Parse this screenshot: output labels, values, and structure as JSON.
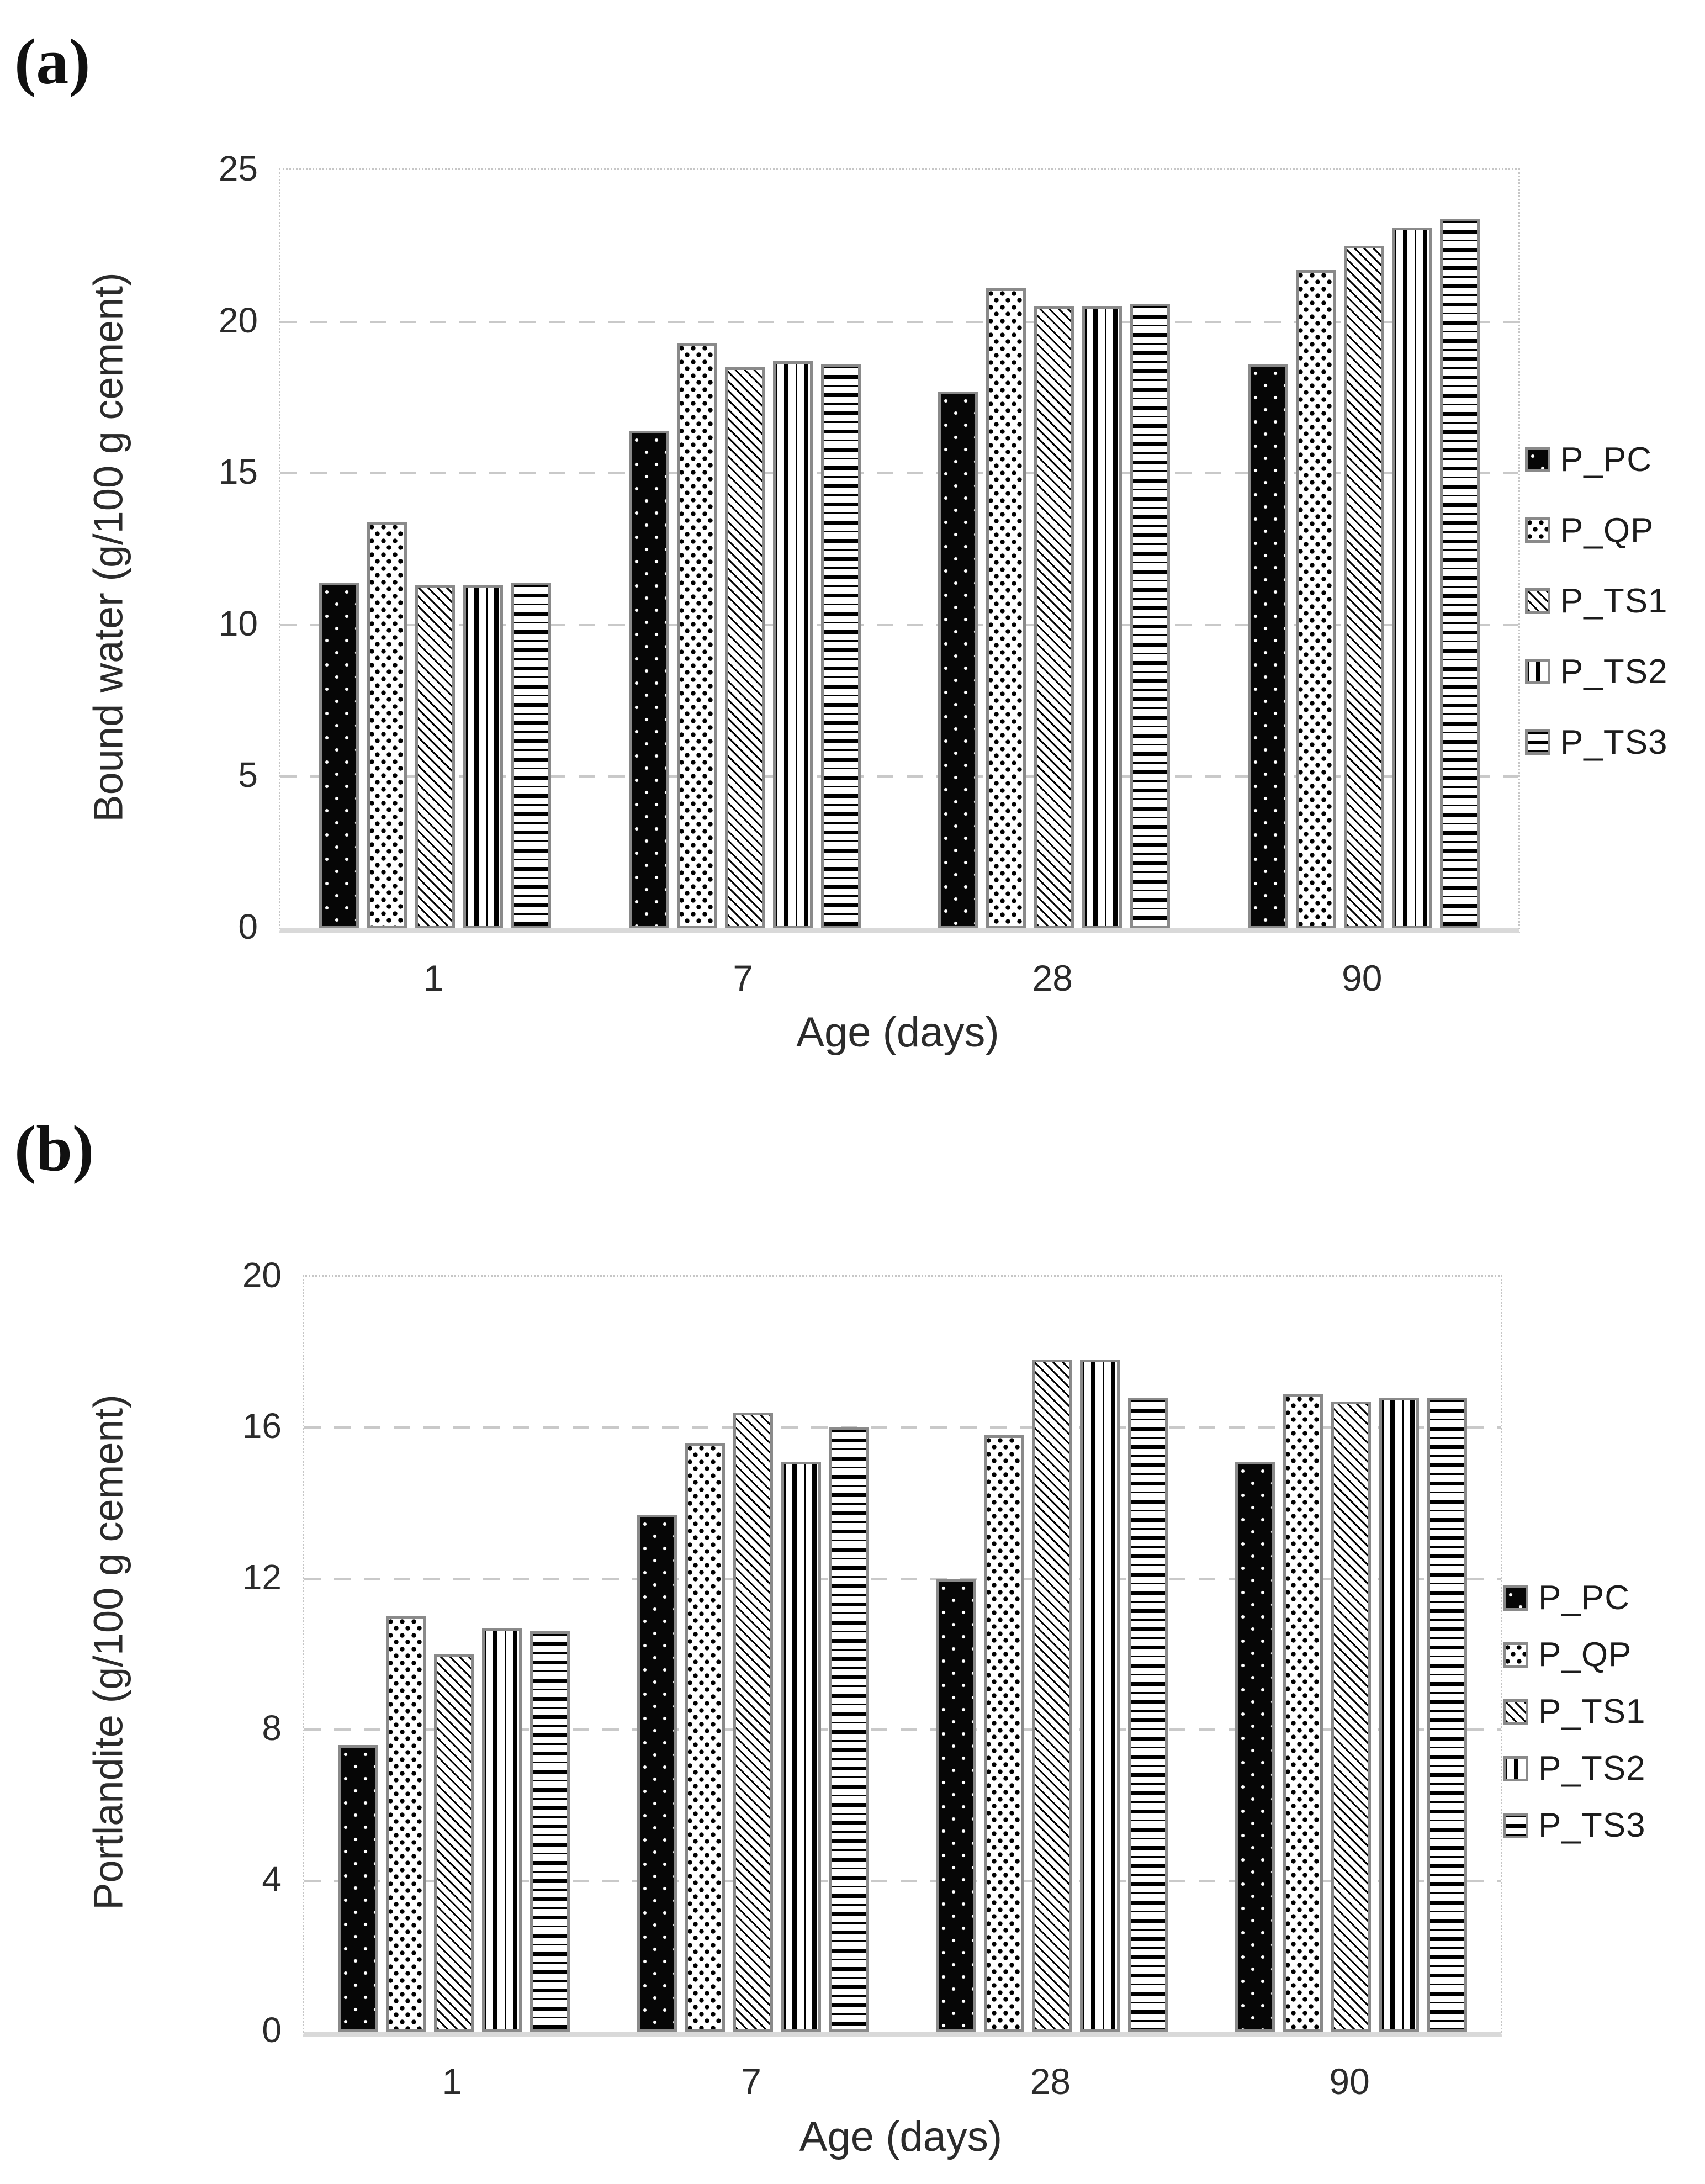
{
  "panel_labels": {
    "a": "(a)",
    "b": "(b)"
  },
  "colors": {
    "background": "#ffffff",
    "bar_border": "#8a8a8a",
    "gridline": "#c9c9c9",
    "axis_baseline": "#d9d9d9",
    "text": "#262626",
    "bar_black": "#000000",
    "bar_white": "#ffffff"
  },
  "chart_data": [
    {
      "id": "a",
      "type": "bar",
      "title": "",
      "xlabel": "Age (days)",
      "ylabel": "Bound water (g/100 g cement)",
      "categories": [
        "1",
        "7",
        "28",
        "90"
      ],
      "ylim": [
        0,
        25
      ],
      "yticks": [
        0,
        5,
        10,
        15,
        20,
        25
      ],
      "grid": "horizontal dashed",
      "legend_position": "right",
      "series": [
        {
          "name": "P_PC",
          "pattern": "black-white-dots",
          "values": [
            11.4,
            16.4,
            17.7,
            18.6
          ]
        },
        {
          "name": "P_QP",
          "pattern": "speckle",
          "values": [
            13.4,
            19.3,
            21.1,
            21.7
          ]
        },
        {
          "name": "P_TS1",
          "pattern": "diagonal",
          "values": [
            11.3,
            18.5,
            20.5,
            22.5
          ]
        },
        {
          "name": "P_TS2",
          "pattern": "vertical",
          "values": [
            11.3,
            18.7,
            20.5,
            23.1
          ]
        },
        {
          "name": "P_TS3",
          "pattern": "horizontal",
          "values": [
            11.4,
            18.6,
            20.6,
            23.4
          ]
        }
      ]
    },
    {
      "id": "b",
      "type": "bar",
      "title": "",
      "xlabel": "Age (days)",
      "ylabel": "Portlandite (g/100 g cement)",
      "categories": [
        "1",
        "7",
        "28",
        "90"
      ],
      "ylim": [
        0,
        20
      ],
      "yticks": [
        0,
        4,
        8,
        12,
        16,
        20
      ],
      "grid": "horizontal dashed",
      "legend_position": "right",
      "series": [
        {
          "name": "P_PC",
          "pattern": "black-white-dots",
          "values": [
            7.6,
            13.7,
            12.0,
            15.1
          ]
        },
        {
          "name": "P_QP",
          "pattern": "speckle",
          "values": [
            11.0,
            15.6,
            15.8,
            16.9
          ]
        },
        {
          "name": "P_TS1",
          "pattern": "diagonal",
          "values": [
            10.0,
            16.4,
            17.8,
            16.7
          ]
        },
        {
          "name": "P_TS2",
          "pattern": "vertical",
          "values": [
            10.7,
            15.1,
            17.8,
            16.8
          ]
        },
        {
          "name": "P_TS3",
          "pattern": "horizontal",
          "values": [
            10.6,
            16.0,
            16.8,
            16.8
          ]
        }
      ]
    }
  ]
}
